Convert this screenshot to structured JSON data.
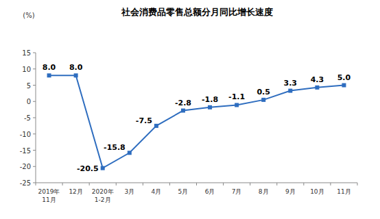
{
  "chart_data": {
    "type": "line",
    "title": "社会消费品零售总额分月同比增长速度",
    "y_label": "(%)",
    "categories": [
      "2019年\n11月",
      "12月",
      "2020年\n1-2月",
      "3月",
      "4月",
      "5月",
      "6月",
      "7月",
      "8月",
      "9月",
      "10月",
      "11月"
    ],
    "values": [
      8.0,
      8.0,
      -20.5,
      -15.8,
      -7.5,
      -2.8,
      -1.8,
      -1.1,
      0.5,
      3.3,
      4.3,
      5.0
    ],
    "value_labels": [
      "8.0",
      "8.0",
      "-20.5",
      "-15.8",
      "-7.5",
      "-2.8",
      "-1.8",
      "-1.1",
      "0.5",
      "3.3",
      "4.3",
      "5.0"
    ],
    "color": "#2e6dbf",
    "marker": "square",
    "ylim": [
      -25,
      15
    ],
    "yticks": [
      -25,
      -20,
      -15,
      -10,
      -5,
      0,
      5,
      10,
      15
    ],
    "grid": false,
    "data_labels": true
  }
}
